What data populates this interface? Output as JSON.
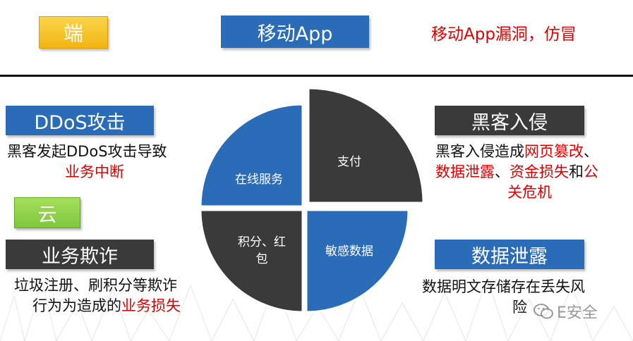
{
  "header": {
    "end_tag": "端",
    "mobile_title": "移动App",
    "mobile_note": "移动App漏洞，仿冒"
  },
  "left": {
    "ddos_tag": "DDoS攻击",
    "ddos_text_1": "黑客发起DDoS攻击导致",
    "ddos_text_red": "业务中断",
    "cloud_tag": "云",
    "fraud_tag": "业务欺诈",
    "fraud_text_1": "垃圾注册、刷积分等欺诈",
    "fraud_text_2": "行为为造成的",
    "fraud_text_red": "业务损失"
  },
  "right": {
    "intrusion_tag": "黑客入侵",
    "intrusion_text_1": "黑客入侵造成",
    "intrusion_red_1": "网页篡改",
    "intrusion_sep_1": "、",
    "intrusion_red_2": "数据泄露",
    "intrusion_sep_2": "、",
    "intrusion_red_3": "资金损失",
    "intrusion_and": "和",
    "intrusion_red_4a": "公",
    "intrusion_red_4b": "关危机",
    "leak_tag": "数据泄露",
    "leak_text_1": "数据明文存储存在丢失风",
    "leak_text_2": "险"
  },
  "pie": {
    "top_left": "在线服务",
    "top_right": "支付",
    "bottom_left_1": "积分、红",
    "bottom_left_2": "包",
    "bottom_right": "敏感数据"
  },
  "watermark": "E安全",
  "colors": {
    "blue": "#2b6cb8",
    "dark": "#3a3a3a",
    "red": "#e00000",
    "yellow": "#f2b512",
    "green": "#7ec73c"
  }
}
